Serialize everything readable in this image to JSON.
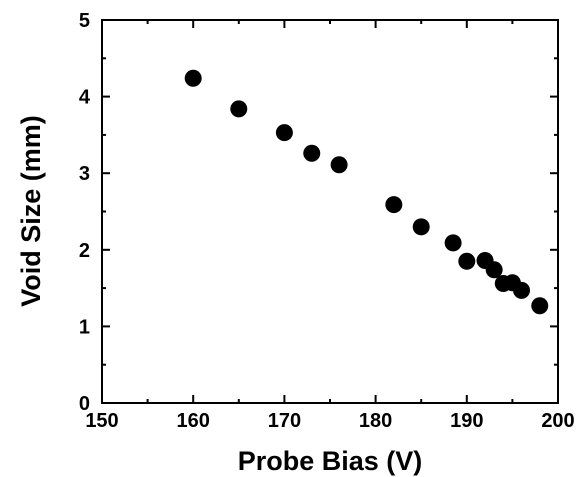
{
  "chart_data": {
    "type": "scatter",
    "title": "",
    "xlabel": "Probe Bias (V)",
    "ylabel": "Void Size (mm)",
    "xlim": [
      150,
      200
    ],
    "ylim": [
      0,
      5
    ],
    "x_ticks": [
      150,
      160,
      170,
      180,
      190,
      200
    ],
    "y_ticks": [
      0,
      1,
      2,
      3,
      4,
      5
    ],
    "x_tick_labels": [
      "150",
      "160",
      "170",
      "180",
      "190",
      "200"
    ],
    "y_tick_labels": [
      "0",
      "1",
      "2",
      "3",
      "4",
      "5"
    ],
    "grid": false,
    "marker": "filled-circle",
    "marker_color": "#000000",
    "series": [
      {
        "x": [
          160,
          165,
          170,
          173,
          176,
          182,
          185,
          188.5,
          190,
          192,
          193,
          194,
          195,
          196,
          198
        ],
        "y": [
          4.24,
          3.84,
          3.53,
          3.26,
          3.11,
          2.59,
          2.3,
          2.09,
          1.85,
          1.86,
          1.74,
          1.56,
          1.57,
          1.47,
          1.27
        ]
      }
    ]
  }
}
